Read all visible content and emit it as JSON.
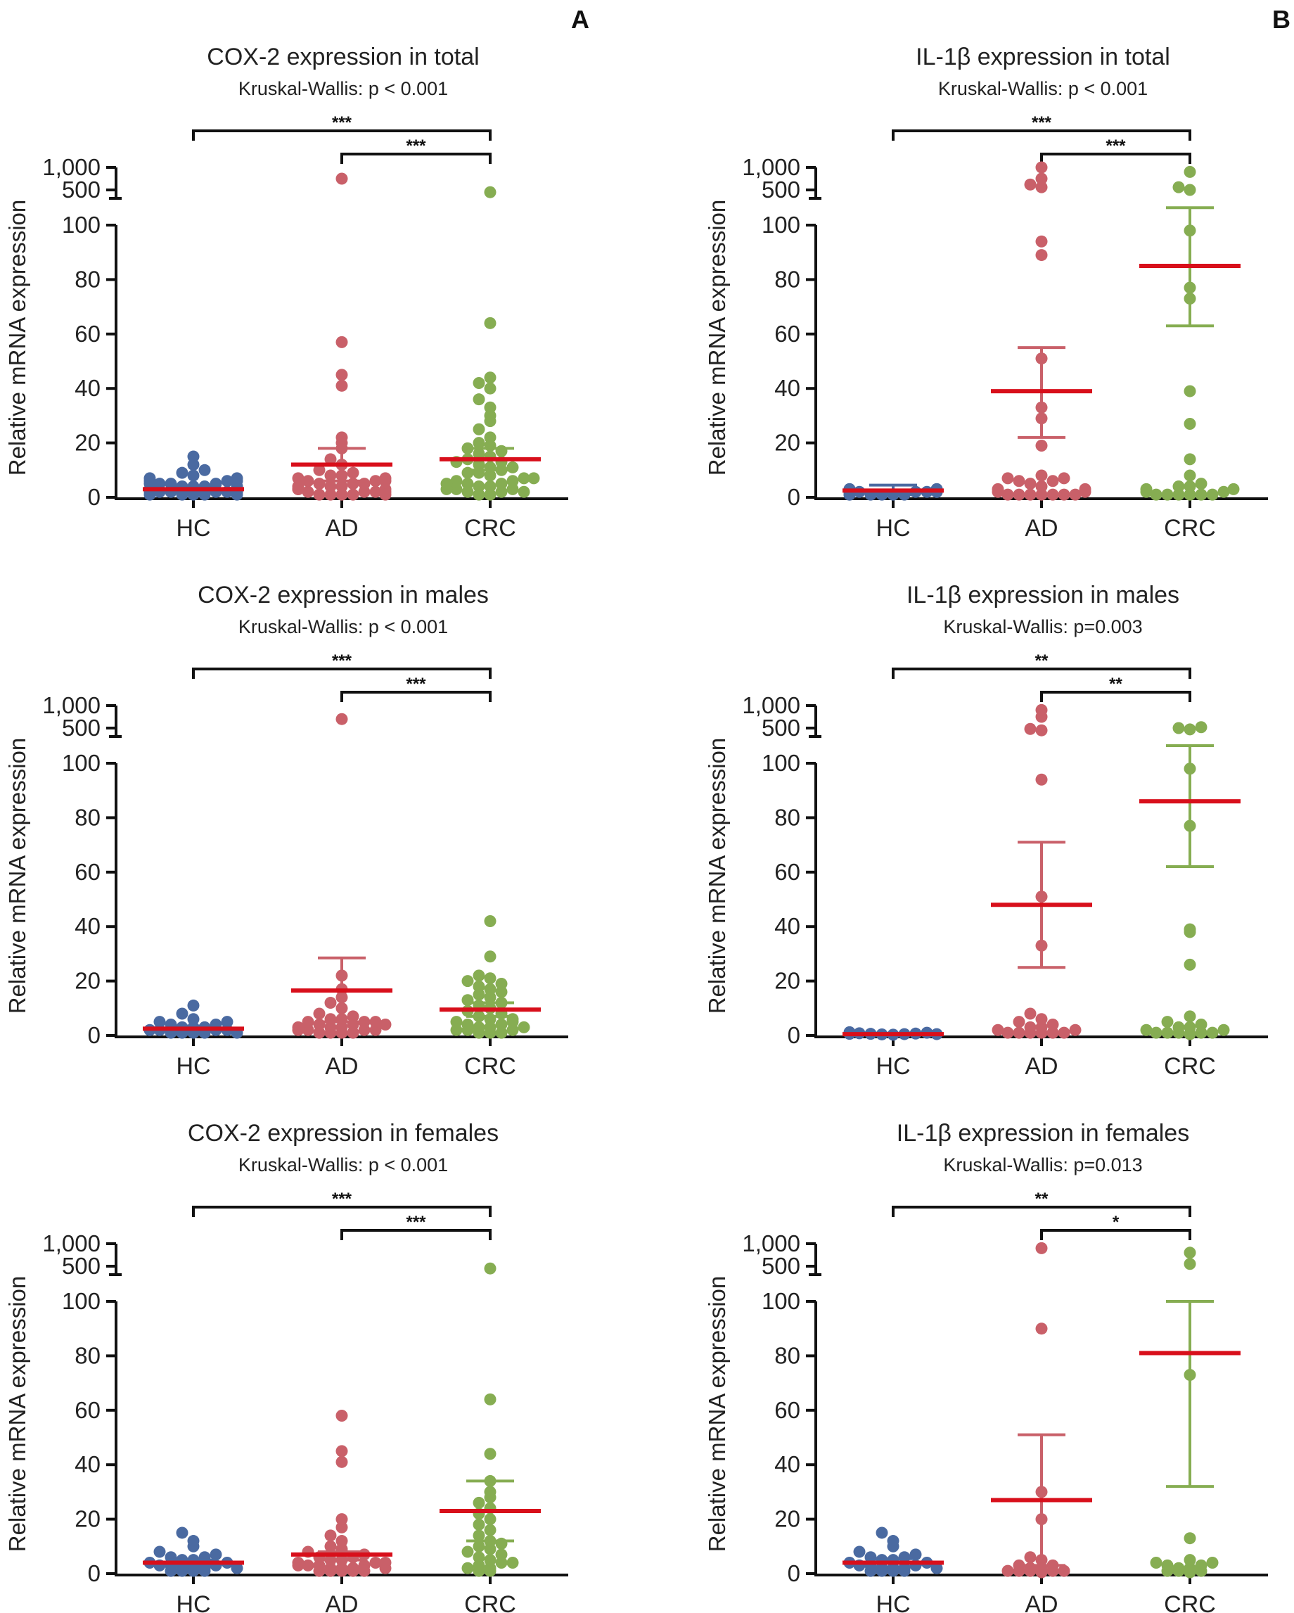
{
  "panel_labels": [
    "A",
    "B"
  ],
  "chart_data": [
    {
      "type": "scatter",
      "panel": "A",
      "title": "COX-2 expression in total",
      "subtitle": "Kruskal-Wallis: p < 0.001",
      "ylabel": "Relative mRNA expression",
      "categories": [
        "HC",
        "AD",
        "CRC"
      ],
      "y_ticks": [
        "0",
        "20",
        "40",
        "60",
        "80",
        "100",
        "500",
        "1,000"
      ],
      "ylim": [
        0,
        1000
      ],
      "y_axis_break": [
        100,
        500
      ],
      "significance": [
        {
          "from": "HC",
          "to": "CRC",
          "label": "***"
        },
        {
          "from": "AD",
          "to": "CRC",
          "label": "***"
        }
      ],
      "colors": {
        "HC": "#4a6aa1",
        "AD": "#c96069",
        "CRC": "#86ad52",
        "mean": "#d80f1b"
      },
      "series": [
        {
          "name": "HC",
          "mean": 3,
          "sem": [
            2,
            4
          ],
          "values": [
            1,
            1,
            1,
            2,
            2,
            2,
            2,
            3,
            3,
            3,
            3,
            4,
            4,
            4,
            5,
            5,
            5,
            6,
            6,
            7,
            7,
            8,
            9,
            10,
            12,
            15,
            1,
            2,
            3,
            4,
            5,
            6,
            2,
            3,
            1,
            2
          ]
        },
        {
          "name": "AD",
          "mean": 12,
          "sem": [
            6,
            18
          ],
          "values": [
            1,
            1,
            1,
            1,
            2,
            2,
            2,
            3,
            3,
            3,
            4,
            4,
            5,
            5,
            5,
            6,
            6,
            7,
            7,
            8,
            8,
            9,
            10,
            12,
            14,
            18,
            20,
            22,
            41,
            45,
            57,
            750,
            2,
            3,
            1,
            4,
            6
          ]
        },
        {
          "name": "CRC",
          "mean": 14,
          "sem": [
            10,
            18
          ],
          "values": [
            1,
            1,
            2,
            2,
            3,
            3,
            4,
            4,
            5,
            5,
            6,
            6,
            7,
            8,
            9,
            10,
            11,
            12,
            13,
            14,
            15,
            16,
            17,
            18,
            19,
            20,
            22,
            25,
            28,
            30,
            33,
            36,
            40,
            42,
            44,
            64,
            450,
            2,
            3,
            5,
            7,
            9,
            11,
            13
          ]
        }
      ]
    },
    {
      "type": "scatter",
      "panel": "B",
      "title": "IL-1β expression in total",
      "subtitle": "Kruskal-Wallis: p < 0.001",
      "ylabel": "Relative mRNA expression",
      "categories": [
        "HC",
        "AD",
        "CRC"
      ],
      "y_ticks": [
        "0",
        "20",
        "40",
        "60",
        "80",
        "100",
        "500",
        "1,000"
      ],
      "ylim": [
        0,
        1000
      ],
      "y_axis_break": [
        100,
        500
      ],
      "significance": [
        {
          "from": "HC",
          "to": "CRC",
          "label": "***"
        },
        {
          "from": "AD",
          "to": "CRC",
          "label": "***"
        }
      ],
      "colors": {
        "HC": "#4a6aa1",
        "AD": "#c96069",
        "CRC": "#86ad52",
        "mean": "#d80f1b"
      },
      "series": [
        {
          "name": "HC",
          "mean": 2.5,
          "sem": [
            1,
            4.5
          ],
          "values": [
            1,
            1,
            1,
            1,
            2,
            2,
            2,
            2,
            3,
            3,
            3,
            1,
            2,
            1,
            2,
            3
          ]
        },
        {
          "name": "AD",
          "mean": 39,
          "sem": [
            22,
            55
          ],
          "values": [
            1,
            1,
            1,
            1,
            1,
            1,
            1,
            2,
            2,
            3,
            3,
            4,
            5,
            6,
            6,
            7,
            7,
            8,
            19,
            29,
            33,
            51,
            89,
            94,
            560,
            620,
            750,
            1000
          ]
        },
        {
          "name": "CRC",
          "mean": 85,
          "sem": [
            63,
            105
          ],
          "values": [
            1,
            1,
            1,
            1,
            1,
            1,
            2,
            2,
            3,
            3,
            4,
            4,
            5,
            8,
            14,
            27,
            39,
            73,
            77,
            98,
            500,
            560,
            900
          ]
        }
      ]
    },
    {
      "type": "scatter",
      "panel": "A",
      "title": "COX-2 expression in males",
      "subtitle": "Kruskal-Wallis: p < 0.001",
      "ylabel": "Relative mRNA expression",
      "categories": [
        "HC",
        "AD",
        "CRC"
      ],
      "y_ticks": [
        "0",
        "20",
        "40",
        "60",
        "80",
        "100",
        "500",
        "1,000"
      ],
      "ylim": [
        0,
        1000
      ],
      "y_axis_break": [
        100,
        500
      ],
      "significance": [
        {
          "from": "HC",
          "to": "CRC",
          "label": "***"
        },
        {
          "from": "AD",
          "to": "CRC",
          "label": "***"
        }
      ],
      "colors": {
        "HC": "#4a6aa1",
        "AD": "#c96069",
        "CRC": "#86ad52",
        "mean": "#d80f1b"
      },
      "series": [
        {
          "name": "HC",
          "mean": 2.5,
          "sem": [
            1.5,
            3.5
          ],
          "values": [
            1,
            1,
            1,
            1,
            2,
            2,
            2,
            3,
            3,
            3,
            4,
            4,
            5,
            5,
            6,
            8,
            11,
            2,
            1
          ]
        },
        {
          "name": "AD",
          "mean": 16.5,
          "sem": [
            5,
            28.5
          ],
          "values": [
            1,
            1,
            1,
            1,
            2,
            2,
            2,
            3,
            3,
            4,
            4,
            5,
            5,
            5,
            6,
            6,
            7,
            8,
            10,
            12,
            14,
            17,
            22,
            700,
            2,
            3,
            4
          ]
        },
        {
          "name": "CRC",
          "mean": 9.5,
          "sem": [
            7,
            12
          ],
          "values": [
            1,
            1,
            1,
            2,
            2,
            3,
            3,
            4,
            4,
            5,
            5,
            6,
            7,
            8,
            9,
            10,
            11,
            12,
            13,
            14,
            15,
            16,
            17,
            18,
            19,
            20,
            21,
            22,
            29,
            42,
            2,
            3,
            6
          ]
        }
      ]
    },
    {
      "type": "scatter",
      "panel": "B",
      "title": "IL-1β expression in males",
      "subtitle": "Kruskal-Wallis: p=0.003",
      "ylabel": "Relative mRNA expression",
      "categories": [
        "HC",
        "AD",
        "CRC"
      ],
      "y_ticks": [
        "0",
        "20",
        "40",
        "60",
        "80",
        "100",
        "500",
        "1,000"
      ],
      "ylim": [
        0,
        1000
      ],
      "y_axis_break": [
        100,
        500
      ],
      "significance": [
        {
          "from": "HC",
          "to": "CRC",
          "label": "**"
        },
        {
          "from": "AD",
          "to": "CRC",
          "label": "**"
        }
      ],
      "colors": {
        "HC": "#4a6aa1",
        "AD": "#c96069",
        "CRC": "#86ad52",
        "mean": "#d80f1b"
      },
      "series": [
        {
          "name": "HC",
          "mean": 0.5,
          "sem": [
            0.2,
            0.8
          ],
          "values": [
            0.3,
            0.4,
            0.5,
            0.6,
            0.7,
            0.8,
            1,
            1.2,
            0.5,
            0.6
          ]
        },
        {
          "name": "AD",
          "mean": 48,
          "sem": [
            25,
            71
          ],
          "values": [
            1,
            1,
            1,
            1,
            1,
            1,
            2,
            2,
            3,
            3,
            4,
            5,
            6,
            8,
            33,
            51,
            94,
            450,
            480,
            750,
            900
          ]
        },
        {
          "name": "CRC",
          "mean": 86,
          "sem": [
            62,
            110
          ],
          "values": [
            0.5,
            1,
            1,
            1,
            1,
            1,
            2,
            2,
            3,
            3,
            4,
            5,
            7,
            26,
            38,
            39,
            77,
            98,
            470,
            500,
            520
          ]
        }
      ]
    },
    {
      "type": "scatter",
      "panel": "A",
      "title": "COX-2 expression in females",
      "subtitle": "Kruskal-Wallis: p < 0.001",
      "ylabel": "Relative mRNA expression",
      "categories": [
        "HC",
        "AD",
        "CRC"
      ],
      "y_ticks": [
        "0",
        "20",
        "40",
        "60",
        "80",
        "100",
        "500",
        "1,000"
      ],
      "ylim": [
        0,
        1000
      ],
      "y_axis_break": [
        100,
        500
      ],
      "significance": [
        {
          "from": "HC",
          "to": "CRC",
          "label": "***"
        },
        {
          "from": "AD",
          "to": "CRC",
          "label": "***"
        }
      ],
      "colors": {
        "HC": "#4a6aa1",
        "AD": "#c96069",
        "CRC": "#86ad52",
        "mean": "#d80f1b"
      },
      "series": [
        {
          "name": "HC",
          "mean": 4,
          "sem": [
            3,
            5
          ],
          "values": [
            1,
            1,
            1,
            2,
            2,
            2,
            3,
            3,
            3,
            4,
            4,
            5,
            5,
            6,
            6,
            7,
            8,
            10,
            12,
            15,
            1,
            2
          ]
        },
        {
          "name": "AD",
          "mean": 7,
          "sem": [
            5,
            8
          ],
          "values": [
            1,
            1,
            1,
            1,
            2,
            2,
            2,
            3,
            3,
            3,
            4,
            4,
            5,
            5,
            6,
            6,
            7,
            8,
            9,
            10,
            12,
            14,
            17,
            20,
            41,
            45,
            58,
            1,
            2,
            3,
            4
          ]
        },
        {
          "name": "CRC",
          "mean": 23,
          "sem": [
            12,
            34
          ],
          "values": [
            1,
            1,
            2,
            3,
            4,
            5,
            6,
            7,
            8,
            9,
            10,
            11,
            12,
            14,
            16,
            18,
            20,
            22,
            24,
            26,
            28,
            30,
            34,
            44,
            64,
            450,
            2,
            4
          ]
        }
      ]
    },
    {
      "type": "scatter",
      "panel": "B",
      "title": "IL-1β expression in females",
      "subtitle": "Kruskal-Wallis: p=0.013",
      "ylabel": "Relative mRNA expression",
      "categories": [
        "HC",
        "AD",
        "CRC"
      ],
      "y_ticks": [
        "0",
        "20",
        "40",
        "60",
        "80",
        "100",
        "500",
        "1,000"
      ],
      "ylim": [
        0,
        1000
      ],
      "y_axis_break": [
        100,
        500
      ],
      "significance": [
        {
          "from": "HC",
          "to": "CRC",
          "label": "**"
        },
        {
          "from": "AD",
          "to": "CRC",
          "label": "*"
        }
      ],
      "colors": {
        "HC": "#4a6aa1",
        "AD": "#c96069",
        "CRC": "#86ad52",
        "mean": "#d80f1b"
      },
      "series": [
        {
          "name": "HC",
          "mean": 4,
          "sem": [
            2.5,
            5.5
          ],
          "values": [
            1,
            1,
            1,
            2,
            2,
            2,
            3,
            3,
            3,
            4,
            4,
            5,
            5,
            6,
            6,
            7,
            8,
            10,
            12,
            15,
            1,
            2
          ]
        },
        {
          "name": "AD",
          "mean": 27,
          "sem": [
            3,
            51
          ],
          "values": [
            0.5,
            1,
            1,
            1,
            1,
            1,
            2,
            2,
            3,
            3,
            5,
            6,
            20,
            30,
            90,
            900
          ]
        },
        {
          "name": "CRC",
          "mean": 81,
          "sem": [
            32,
            100
          ],
          "values": [
            0.5,
            1,
            1,
            1,
            2,
            2,
            3,
            3,
            4,
            4,
            5,
            13,
            73,
            550,
            800
          ]
        }
      ]
    }
  ]
}
